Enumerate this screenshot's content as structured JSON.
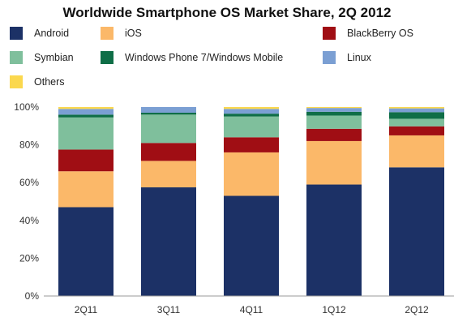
{
  "chart_data": {
    "type": "bar",
    "stacked": true,
    "title": "Worldwide Smartphone OS Market Share, 2Q 2012",
    "categories": [
      "2Q11",
      "3Q11",
      "4Q11",
      "1Q12",
      "2Q12"
    ],
    "series": [
      {
        "name": "Android",
        "color": "#1c3166",
        "values": [
          47,
          57.5,
          53,
          59,
          68.1
        ]
      },
      {
        "name": "iOS",
        "color": "#fbb869",
        "values": [
          19,
          14,
          23,
          23,
          16.9
        ]
      },
      {
        "name": "BlackBerry OS",
        "color": "#a00e14",
        "values": [
          11.5,
          9.5,
          8,
          6.5,
          4.8
        ]
      },
      {
        "name": "Symbian",
        "color": "#7fbf9c",
        "values": [
          17,
          15,
          11,
          7,
          4
        ]
      },
      {
        "name": "Windows Phone 7/Windows Mobile",
        "color": "#0f6e47",
        "values": [
          1.5,
          1,
          1.5,
          2,
          3.5
        ]
      },
      {
        "name": "Linux",
        "color": "#7b9fd3",
        "values": [
          3,
          3,
          2.5,
          2,
          2
        ]
      },
      {
        "name": "Others",
        "color": "#fbd84e",
        "values": [
          1,
          0,
          1,
          0.5,
          0.7
        ]
      }
    ],
    "yticks": [
      "0%",
      "20%",
      "40%",
      "60%",
      "80%",
      "100%"
    ],
    "ylim": [
      0,
      100
    ],
    "grid": false,
    "legend_position": "top"
  }
}
